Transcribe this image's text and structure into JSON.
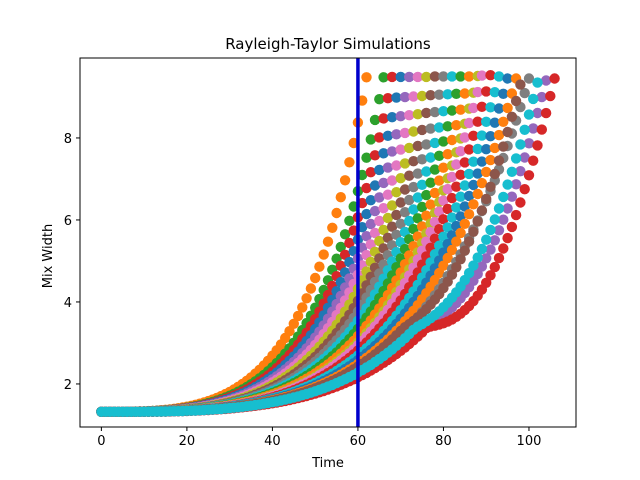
{
  "chart_data": {
    "type": "scatter",
    "title": "Rayleigh-Taylor Simulations",
    "xlabel": "Time",
    "ylabel": "Mix Width",
    "xlim": [
      -5,
      111
    ],
    "ylim": [
      0.95,
      9.95
    ],
    "xticks": [
      0,
      20,
      40,
      60,
      80,
      100
    ],
    "yticks": [
      2,
      4,
      6,
      8
    ],
    "x_tick_labels": [
      "0",
      "20",
      "40",
      "60",
      "80",
      "100"
    ],
    "y_tick_labels": [
      "2",
      "4",
      "6",
      "8"
    ],
    "vertical_line": {
      "x": 60,
      "color": "#0000cc"
    },
    "grid": false,
    "legend": "none",
    "series_model": {
      "description_of_curves": "Many simulation runs; each run's mix width grows from ~1.32 at time 0 to a plateau near 9.45-9.5 at its end time.",
      "start_value": 1.32,
      "end_value_range": [
        9.3,
        9.55
      ]
    },
    "series": [
      {
        "color": "#ff7f0e",
        "end_time": 62,
        "end_value": 9.48,
        "bend": 0.0
      },
      {
        "color": "#2ca02c",
        "end_time": 66,
        "end_value": 9.48,
        "bend": 0.0
      },
      {
        "color": "#d62728",
        "end_time": 68,
        "end_value": 9.49,
        "bend": 0.0
      },
      {
        "color": "#1f77b4",
        "end_time": 70,
        "end_value": 9.49,
        "bend": 0.0
      },
      {
        "color": "#9467bd",
        "end_time": 72,
        "end_value": 9.49,
        "bend": 0.0
      },
      {
        "color": "#e377c2",
        "end_time": 74,
        "end_value": 9.49,
        "bend": 0.0
      },
      {
        "color": "#bcbd22",
        "end_time": 76,
        "end_value": 9.49,
        "bend": 0.0
      },
      {
        "color": "#8c564b",
        "end_time": 78,
        "end_value": 9.5,
        "bend": 0.0
      },
      {
        "color": "#7f7f7f",
        "end_time": 80,
        "end_value": 9.5,
        "bend": 0.0
      },
      {
        "color": "#17becf",
        "end_time": 82,
        "end_value": 9.5,
        "bend": 0.0
      },
      {
        "color": "#2ca02c",
        "end_time": 84,
        "end_value": 9.5,
        "bend": 0.0
      },
      {
        "color": "#ff7f0e",
        "end_time": 86,
        "end_value": 9.5,
        "bend": 0.0
      },
      {
        "color": "#bcbd22",
        "end_time": 88,
        "end_value": 9.51,
        "bend": 0.0
      },
      {
        "color": "#e377c2",
        "end_time": 89,
        "end_value": 9.52,
        "bend": 0.0
      },
      {
        "color": "#d62728",
        "end_time": 91,
        "end_value": 9.53,
        "bend": 0.0
      },
      {
        "color": "#17becf",
        "end_time": 93,
        "end_value": 9.5,
        "bend": 0.0
      },
      {
        "color": "#1f77b4",
        "end_time": 95,
        "end_value": 9.45,
        "bend": 0.0
      },
      {
        "color": "#ff7f0e",
        "end_time": 97,
        "end_value": 9.45,
        "bend": 0.0
      },
      {
        "color": "#7f7f7f",
        "end_time": 100,
        "end_value": 9.45,
        "bend": 0.0
      },
      {
        "color": "#9467bd",
        "end_time": 104,
        "end_value": 9.4,
        "bend": 0.6
      },
      {
        "color": "#d62728",
        "end_time": 106,
        "end_value": 9.45,
        "bend": 0.9
      },
      {
        "color": "#8c564b",
        "end_time": 98,
        "end_value": 9.3,
        "bend": 0.4
      },
      {
        "color": "#17becf",
        "end_time": 102,
        "end_value": 9.35,
        "bend": 0.5
      }
    ]
  }
}
